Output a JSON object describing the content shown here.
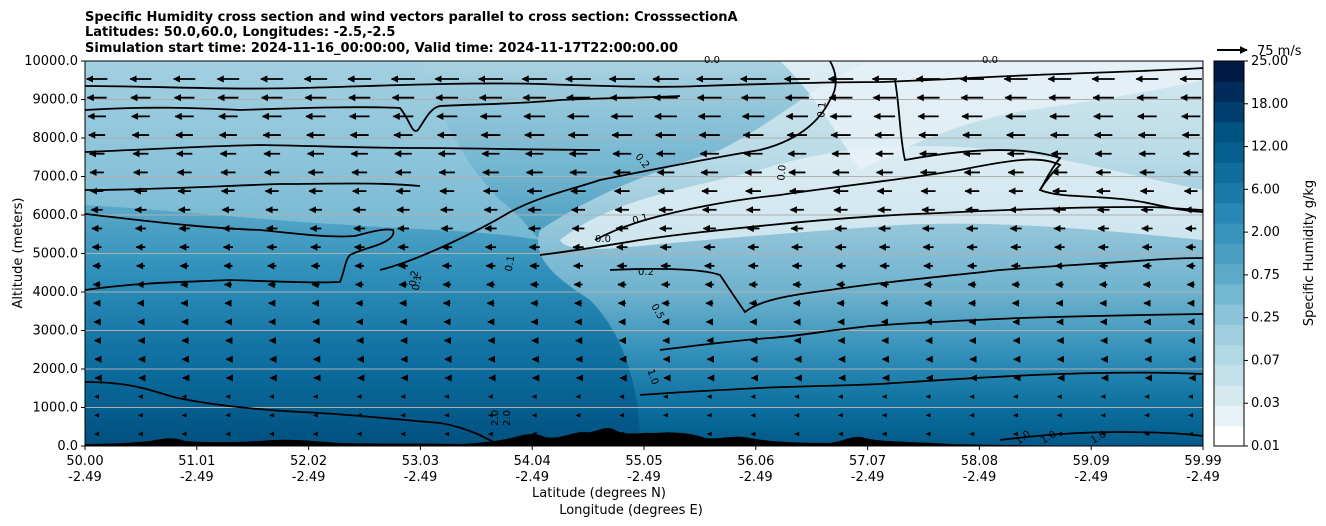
{
  "chart_data": {
    "type": "contour-cross-section",
    "title_lines": [
      "Specific Humidity cross section and wind vectors parallel to cross section: CrosssectionA",
      "Latitudes: 50.0,60.0, Longitudes: -2.5,-2.5",
      "Simulation start time: 2024-11-16_00:00:00, Valid time: 2024-11-17T22:00:00.00"
    ],
    "ylabel": "Altitude (meters)",
    "xlabel_lat": "Latitude (degrees N)",
    "xlabel_lon": "Longitude (degrees E)",
    "ylim": [
      0,
      10000
    ],
    "yticks": [
      "0.0",
      "1000.0",
      "2000.0",
      "3000.0",
      "4000.0",
      "5000.0",
      "6000.0",
      "7000.0",
      "8000.0",
      "9000.0",
      "10000.0"
    ],
    "xticks_lat": [
      "50.00",
      "51.01",
      "52.02",
      "53.03",
      "54.04",
      "55.05",
      "56.06",
      "57.07",
      "58.08",
      "59.09",
      "59.99"
    ],
    "xticks_lon": [
      "-2.49",
      "-2.49",
      "-2.49",
      "-2.49",
      "-2.49",
      "-2.49",
      "-2.49",
      "-2.49",
      "-2.49",
      "-2.49",
      "-2.49"
    ],
    "grid": "horizontal",
    "colorbar_label": "Specific Humidity g/kg",
    "colorbar_ticks": [
      "0.01",
      "0.03",
      "0.07",
      "0.25",
      "0.75",
      "2.00",
      "6.00",
      "12.00",
      "18.00",
      "25.00"
    ],
    "colorbar_colors": [
      "#ffffff",
      "#e8f1f5",
      "#d6e9ef",
      "#c4e0ea",
      "#b2d7e5",
      "#a0cedf",
      "#8bc4d9",
      "#73b8d1",
      "#5aaac8",
      "#4a9fc1",
      "#3894bb",
      "#2887b4",
      "#1a7aa9",
      "#0f6c9c",
      "#075f8f",
      "#005482",
      "#003f6f",
      "#002b5a",
      "#001a45"
    ],
    "wind_reference": "75 m/s",
    "contour_labels": [
      "0.0",
      "0.1",
      "0.2",
      "0.5",
      "1.0",
      "2.0"
    ]
  }
}
